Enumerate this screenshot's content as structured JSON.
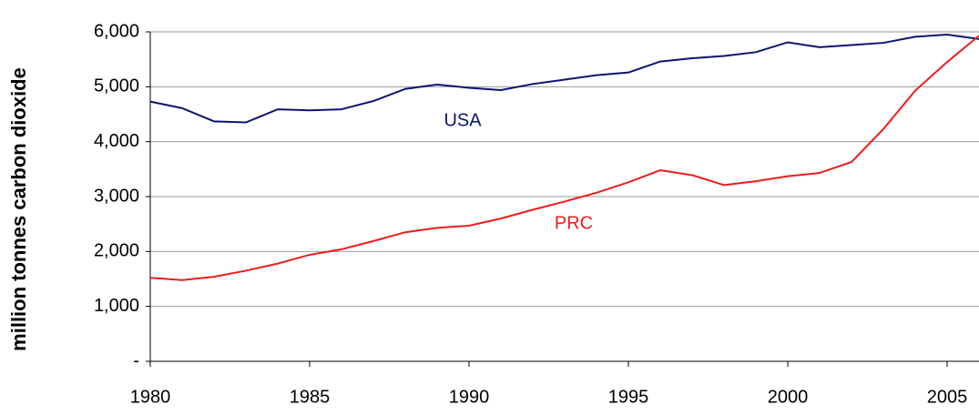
{
  "chart_data": {
    "type": "line",
    "y_axis_label": "million tonnes carbon dioxide",
    "x": [
      1980,
      1981,
      1982,
      1983,
      1984,
      1985,
      1986,
      1987,
      1988,
      1989,
      1990,
      1991,
      1992,
      1993,
      1994,
      1995,
      1996,
      1997,
      1998,
      1999,
      2000,
      2001,
      2002,
      2003,
      2004,
      2005,
      2006
    ],
    "series": [
      {
        "name": "USA",
        "color": "#0a1470",
        "values": [
          4730,
          4610,
          4370,
          4350,
          4590,
          4570,
          4590,
          4740,
          4960,
          5040,
          4980,
          4940,
          5050,
          5130,
          5210,
          5260,
          5460,
          5520,
          5560,
          5630,
          5810,
          5720,
          5760,
          5800,
          5910,
          5950,
          5870
        ]
      },
      {
        "name": "PRC",
        "color": "#ee1c1c",
        "values": [
          1520,
          1480,
          1540,
          1650,
          1780,
          1940,
          2040,
          2190,
          2350,
          2430,
          2470,
          2600,
          2760,
          2910,
          3070,
          3260,
          3480,
          3390,
          3210,
          3280,
          3370,
          3430,
          3630,
          4230,
          4930,
          5450,
          5930
        ]
      }
    ],
    "xlim": [
      1980,
      2006
    ],
    "xticks": [
      1980,
      1985,
      1990,
      1995,
      2000,
      2005
    ],
    "ylim": [
      0,
      6000
    ],
    "yticks": [
      {
        "value": 0,
        "label": "-"
      },
      {
        "value": 1000,
        "label": "1,000"
      },
      {
        "value": 2000,
        "label": "2,000"
      },
      {
        "value": 3000,
        "label": "3,000"
      },
      {
        "value": 4000,
        "label": "4,000"
      },
      {
        "value": 5000,
        "label": "5,000"
      },
      {
        "value": 6000,
        "label": "6,000"
      }
    ],
    "grid": true
  }
}
